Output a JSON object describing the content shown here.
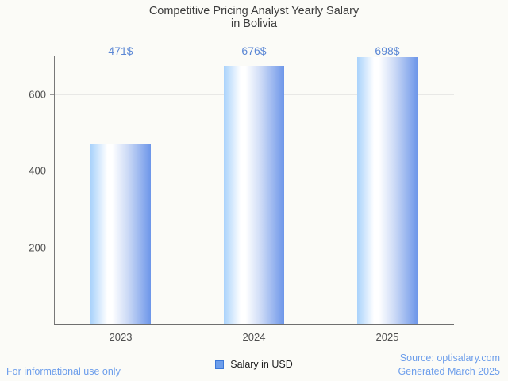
{
  "title_lines": [
    "Competitive Pricing Analyst Yearly Salary",
    "in Bolivia"
  ],
  "chart_data": {
    "type": "bar",
    "title": "Competitive Pricing Analyst Yearly Salary in Bolivia",
    "categories": [
      "2023",
      "2024",
      "2025"
    ],
    "series": [
      {
        "name": "Salary in USD",
        "values": [
          471,
          676,
          698
        ]
      }
    ],
    "value_labels": [
      "471$",
      "676$",
      "698$"
    ],
    "xlabel": "",
    "ylabel": "",
    "ylim": [
      0,
      700
    ],
    "yticks": [
      200,
      400,
      600
    ],
    "grid": true,
    "legend_position": "bottom"
  },
  "legend": {
    "label": "Salary in USD"
  },
  "footer": {
    "left": "For informational use only",
    "source_line1": "Source: optisalary.com",
    "source_line2": "Generated March 2025"
  },
  "colors": {
    "background": "#fbfbf7",
    "title_text": "#3c3c3c",
    "tick_text": "#4e4e4e",
    "grid_line": "#e8e8e6",
    "axis_line": "#6f6f6f",
    "value_label_text": "#5b87d5",
    "footer_text": "#6d9eeb",
    "legend_text": "#1f1f1f",
    "legend_swatch_fill": "#6d9eeb",
    "legend_swatch_border": "#3c78d8",
    "bar_gradient_left": "#a9d2fb",
    "bar_gradient_mid": "#ffffff",
    "bar_gradient_right": "#6d96e9"
  }
}
